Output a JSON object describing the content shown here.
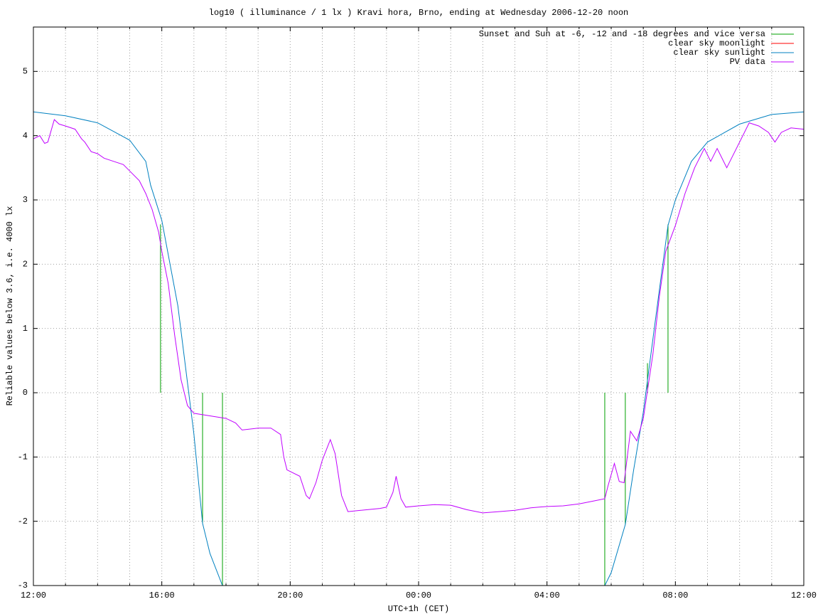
{
  "chart_data": {
    "type": "line",
    "title": "log10 ( illuminance / 1 lx ) Kravi hora, Brno, ending at Wednesday 2006-12-20 noon",
    "xlabel": "UTC+1h (CET)",
    "ylabel": "Reliable values below 3.6, i.e. 4000 lx",
    "xlim": [
      0,
      24
    ],
    "ylim": [
      -3,
      5.69
    ],
    "xticks": [
      {
        "value": 0,
        "label": "12:00"
      },
      {
        "value": 4,
        "label": "16:00"
      },
      {
        "value": 8,
        "label": "20:00"
      },
      {
        "value": 12,
        "label": "00:00"
      },
      {
        "value": 16,
        "label": "04:00"
      },
      {
        "value": 20,
        "label": "08:00"
      },
      {
        "value": 24,
        "label": "12:00"
      }
    ],
    "xminorticks": [
      1,
      2,
      3,
      5,
      6,
      7,
      9,
      10,
      11,
      13,
      14,
      15,
      17,
      18,
      19,
      21,
      22,
      23
    ],
    "yticks": [
      -3,
      -2,
      -1,
      0,
      1,
      2,
      3,
      4,
      5
    ],
    "grid": true,
    "legend": "top-right",
    "series": [
      {
        "name": "Sunset and Sun at -6, -12 and -18 degrees and vice versa",
        "color": "#00a000",
        "style": "impulses",
        "x": [
          3.96,
          5.27,
          5.89,
          17.8,
          18.44,
          19.13,
          19.77
        ],
        "values": [
          2.62,
          -2.03,
          -3,
          -3,
          -2.05,
          0.46,
          2.62
        ]
      },
      {
        "name": "clear sky moonlight",
        "color": "#ff0000",
        "style": "lines",
        "x": [],
        "values": []
      },
      {
        "name": "clear sky sunlight",
        "color": "#0080c0",
        "style": "lines",
        "x": [
          0,
          1,
          2,
          3,
          3.5,
          3.65,
          4,
          4.5,
          5,
          5.27,
          5.5,
          5.89,
          17.8,
          18,
          18.44,
          18.7,
          19,
          19.5,
          19.77,
          20,
          20.5,
          21,
          22,
          23,
          24
        ],
        "values": [
          4.37,
          4.31,
          4.2,
          3.93,
          3.6,
          3.23,
          2.68,
          1.35,
          -0.64,
          -2.03,
          -2.5,
          -3,
          -3,
          -2.8,
          -2.05,
          -1.2,
          -0.3,
          1.6,
          2.6,
          3.0,
          3.6,
          3.9,
          4.18,
          4.33,
          4.37
        ]
      },
      {
        "name": "PV data",
        "color": "#c000ff",
        "style": "lines",
        "x": [
          0,
          0.2,
          0.35,
          0.45,
          0.65,
          0.8,
          1,
          1.3,
          1.5,
          1.6,
          1.8,
          2,
          2.2,
          2.5,
          2.8,
          3,
          3.3,
          3.5,
          3.7,
          3.9,
          4,
          4.2,
          4.4,
          4.6,
          4.8,
          5,
          5.5,
          6,
          6.3,
          6.5,
          7,
          7.4,
          7.7,
          7.8,
          7.9,
          8.3,
          8.5,
          8.6,
          8.8,
          9,
          9.25,
          9.4,
          9.6,
          9.8,
          10.2,
          10.8,
          11,
          11.2,
          11.3,
          11.45,
          11.6,
          12,
          12.5,
          13,
          13.5,
          14,
          14.5,
          15,
          15.5,
          16,
          16.5,
          17,
          17.5,
          17.8,
          17.9,
          18.1,
          18.25,
          18.4,
          18.5,
          18.6,
          18.8,
          19,
          19.3,
          19.5,
          19.7,
          20,
          20.3,
          20.6,
          20.8,
          20.9,
          21.1,
          21.3,
          21.6,
          22,
          22.3,
          22.6,
          22.9,
          23.1,
          23.3,
          23.6,
          24
        ],
        "values": [
          3.95,
          4.0,
          3.88,
          3.9,
          4.25,
          4.18,
          4.15,
          4.1,
          3.95,
          3.9,
          3.75,
          3.72,
          3.65,
          3.6,
          3.55,
          3.45,
          3.3,
          3.1,
          2.85,
          2.5,
          2.2,
          1.7,
          0.9,
          0.2,
          -0.2,
          -0.32,
          -0.36,
          -0.4,
          -0.47,
          -0.58,
          -0.55,
          -0.55,
          -0.65,
          -1.0,
          -1.2,
          -1.3,
          -1.6,
          -1.65,
          -1.4,
          -1.05,
          -0.73,
          -0.95,
          -1.6,
          -1.85,
          -1.83,
          -1.8,
          -1.78,
          -1.55,
          -1.3,
          -1.65,
          -1.78,
          -1.76,
          -1.74,
          -1.75,
          -1.82,
          -1.87,
          -1.85,
          -1.83,
          -1.79,
          -1.77,
          -1.76,
          -1.73,
          -1.68,
          -1.65,
          -1.45,
          -1.1,
          -1.38,
          -1.4,
          -1.0,
          -0.6,
          -0.75,
          -0.4,
          0.6,
          1.5,
          2.2,
          2.6,
          3.1,
          3.5,
          3.7,
          3.8,
          3.6,
          3.8,
          3.5,
          3.9,
          4.2,
          4.15,
          4.05,
          3.9,
          4.05,
          4.12,
          4.1
        ]
      }
    ]
  }
}
